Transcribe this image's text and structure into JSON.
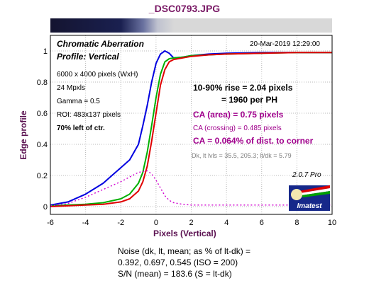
{
  "file_title": "_DSC0793.JPG",
  "header": {
    "title": "Chromatic Aberration",
    "profile": "Profile: Vertical",
    "timestamp": "20-Mar-2019 12:29:00"
  },
  "info": {
    "dims": "6000 x 4000 pixels (WxH)",
    "mpxls": "24 Mpxls",
    "gamma": "Gamma = 0.5",
    "roi": "ROI: 483x137 pixels",
    "location": "70% left of ctr."
  },
  "results": {
    "rise": "10-90% rise = 2.04 pixels",
    "per_ph": "= 1960 per PH",
    "ca_area": "CA (area) = 0.75 pixels",
    "ca_crossing": "CA (crossing) = 0.485 pixels",
    "ca_corner": "CA = 0.064% of dist. to corner",
    "levels": "Dk, lt lvls = 35.5, 205.3;  lt/dk = 5.79"
  },
  "version": "2.0.7  Pro",
  "logo_text": "Imatest",
  "noise": {
    "line1": "Noise (dk, lt, mean; as % of lt-dk) =",
    "line2": "0.392,  0.697,  0.545  (ISO =  200)",
    "line3": "S/N (mean) = 183.6  (S = lt-dk)"
  },
  "chart_data": {
    "type": "line",
    "xlabel": "Pixels (Vertical)",
    "ylabel": "Edge profile",
    "xlim": [
      -6,
      10
    ],
    "ylim": [
      -0.05,
      1.1
    ],
    "x_ticks": [
      -6,
      -4,
      -2,
      0,
      2,
      4,
      6,
      8,
      10
    ],
    "y_ticks": [
      0,
      0.2,
      0.4,
      0.6,
      0.8,
      1
    ],
    "grid": true,
    "series": [
      {
        "color": "#0000e0",
        "style": "solid",
        "x": [
          -6,
          -5,
          -4,
          -3,
          -2.5,
          -2,
          -1.5,
          -1,
          -0.75,
          -0.5,
          -0.25,
          0,
          0.25,
          0.5,
          0.75,
          1,
          1.5,
          2,
          3,
          4,
          6,
          8,
          10
        ],
        "y": [
          0.01,
          0.03,
          0.08,
          0.15,
          0.2,
          0.25,
          0.3,
          0.4,
          0.52,
          0.65,
          0.8,
          0.92,
          0.98,
          1.0,
          0.985,
          0.955,
          0.96,
          0.97,
          0.98,
          0.985,
          0.99,
          0.99,
          0.99
        ]
      },
      {
        "color": "#00b000",
        "style": "solid",
        "x": [
          -6,
          -4,
          -3,
          -2,
          -1.5,
          -1,
          -0.75,
          -0.5,
          -0.25,
          0,
          0.25,
          0.5,
          0.75,
          1,
          1.5,
          2,
          3,
          4,
          6,
          8,
          10
        ],
        "y": [
          0.005,
          0.015,
          0.025,
          0.05,
          0.08,
          0.15,
          0.22,
          0.35,
          0.52,
          0.7,
          0.85,
          0.93,
          0.95,
          0.955,
          0.96,
          0.97,
          0.975,
          0.98,
          0.985,
          0.99,
          0.99
        ]
      },
      {
        "color": "#e00000",
        "style": "solid",
        "x": [
          -6,
          -4,
          -3,
          -2,
          -1.5,
          -1,
          -0.75,
          -0.5,
          -0.25,
          0,
          0.25,
          0.5,
          0.75,
          1,
          1.5,
          2,
          3,
          4,
          6,
          8,
          10
        ],
        "y": [
          0.0,
          0.01,
          0.015,
          0.03,
          0.05,
          0.1,
          0.16,
          0.26,
          0.42,
          0.6,
          0.78,
          0.88,
          0.93,
          0.945,
          0.955,
          0.965,
          0.975,
          0.98,
          0.985,
          0.99,
          0.99
        ]
      },
      {
        "color": "#d000d0",
        "style": "dotted",
        "x": [
          -6,
          -5,
          -4,
          -3,
          -2,
          -1.5,
          -1,
          -0.5,
          -0.25,
          0,
          0.25,
          0.5,
          0.75,
          1,
          1.5,
          2,
          3,
          4,
          6,
          8,
          10
        ],
        "y": [
          0.005,
          0.02,
          0.06,
          0.11,
          0.16,
          0.19,
          0.22,
          0.23,
          0.21,
          0.17,
          0.12,
          0.07,
          0.04,
          0.025,
          0.015,
          0.01,
          0.01,
          0.01,
          0.01,
          0.01,
          0.01
        ]
      }
    ]
  }
}
